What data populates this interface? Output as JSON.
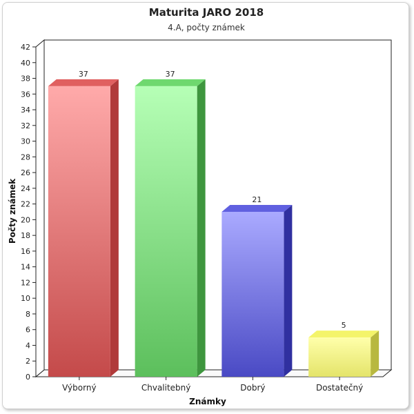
{
  "chart_data": {
    "type": "bar",
    "title": "Maturita JARO 2018",
    "subtitle": "4.A, počty známek",
    "xlabel": "Známky",
    "ylabel": "Počty známek",
    "categories": [
      "Výborný",
      "Chvalitebný",
      "Dobrý",
      "Dostatečný"
    ],
    "values": [
      37,
      37,
      21,
      5
    ],
    "ylim": [
      0,
      42
    ],
    "yticks": [
      0,
      2,
      4,
      6,
      8,
      10,
      12,
      14,
      16,
      18,
      20,
      22,
      24,
      26,
      28,
      30,
      32,
      34,
      36,
      38,
      40,
      42
    ],
    "colors": [
      {
        "top": "#ffaaaa",
        "bottom": "#c44a4a",
        "side": "#b03a3a",
        "cap": "#e06060"
      },
      {
        "top": "#b6ffb6",
        "bottom": "#5cbf5c",
        "side": "#3e963e",
        "cap": "#6fd86f"
      },
      {
        "top": "#aaaaff",
        "bottom": "#4a4ac4",
        "side": "#3030a0",
        "cap": "#6060e0"
      },
      {
        "top": "#ffffaa",
        "bottom": "#e4e46a",
        "side": "#b8b840",
        "cap": "#f4f46a"
      }
    ],
    "grid": false,
    "legend": "none"
  }
}
